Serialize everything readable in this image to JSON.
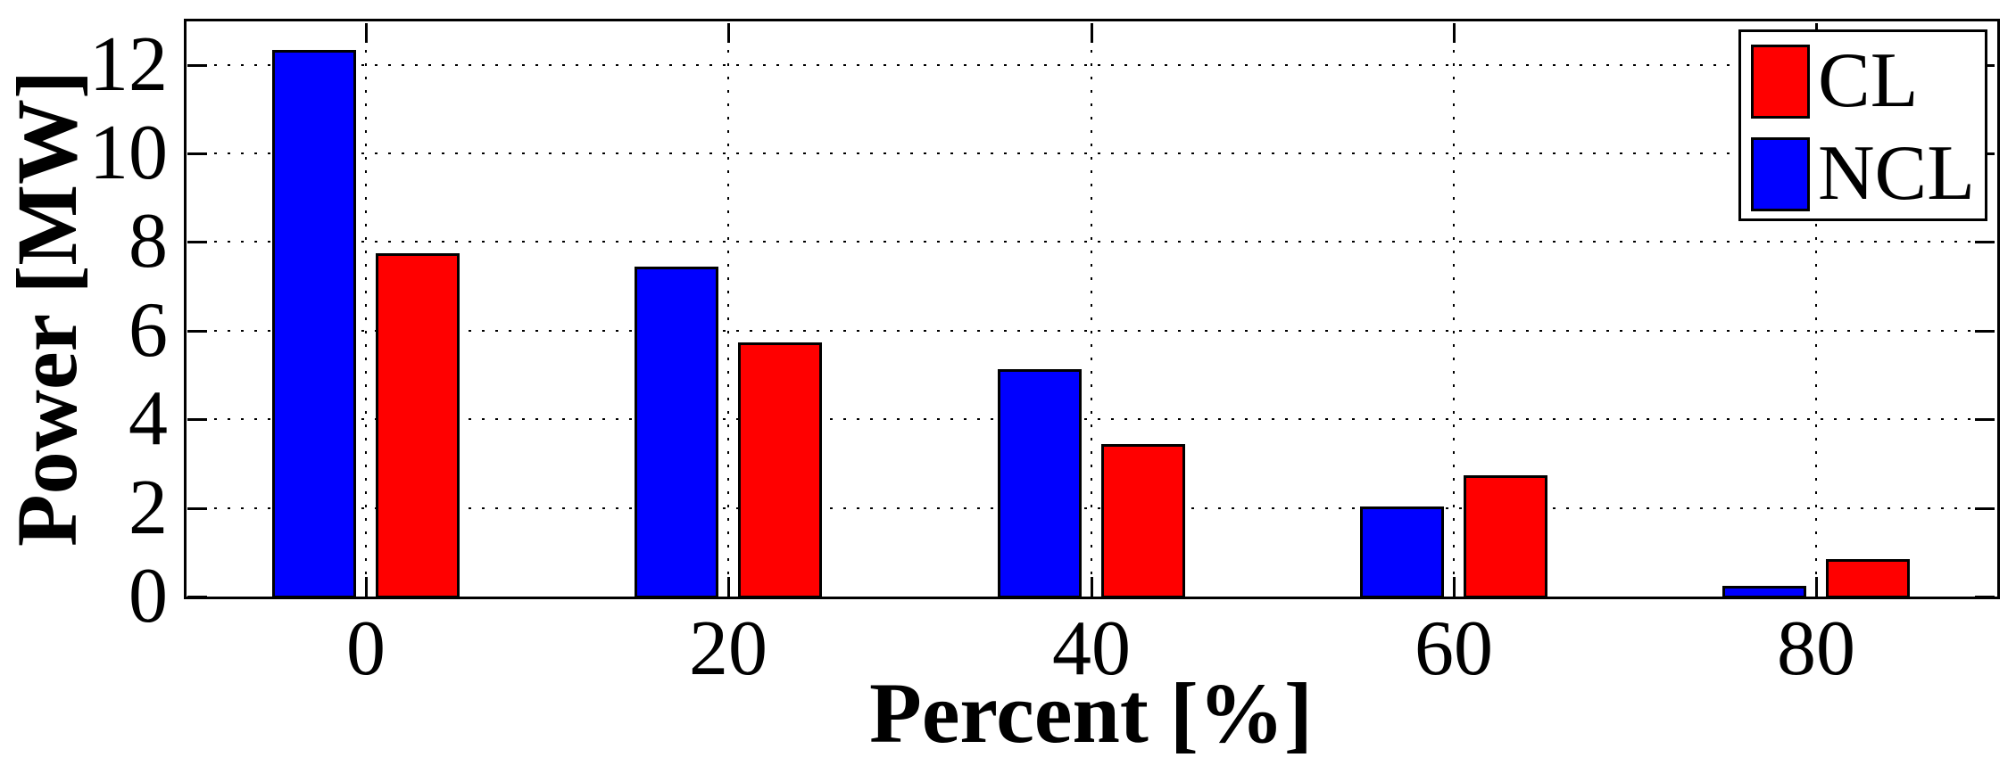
{
  "chart_data": {
    "type": "bar",
    "title": "",
    "xlabel": "Percent [%]",
    "ylabel": "Power [MW]",
    "categories": [
      0,
      20,
      40,
      60,
      80
    ],
    "series": [
      {
        "name": "NCL",
        "color": "#0000ff",
        "values": [
          12.3,
          7.4,
          5.1,
          2.0,
          0.2
        ]
      },
      {
        "name": "CL",
        "color": "#ff0000",
        "values": [
          7.7,
          5.7,
          3.4,
          2.7,
          0.8
        ]
      }
    ],
    "legend_order": [
      "CL",
      "NCL"
    ],
    "legend_position": "top-right",
    "xlim": [
      -10,
      90
    ],
    "ylim": [
      0,
      13
    ],
    "xticks": [
      0,
      20,
      40,
      60,
      80
    ],
    "yticks": [
      0,
      2,
      4,
      6,
      8,
      10,
      12
    ],
    "grid": "dotted",
    "grid_color": "#000000",
    "bar_edge_color": "#000000",
    "background_color": "#ffffff"
  }
}
